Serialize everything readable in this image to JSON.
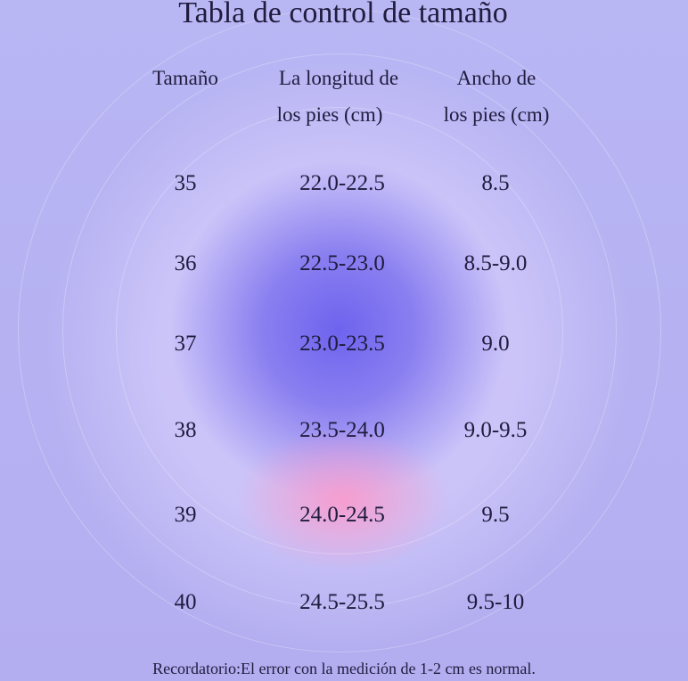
{
  "title": "Tabla de control de tamaño",
  "headers": [
    "Tamaño",
    "La longitud de\nlos pies (cm)",
    "Ancho de\nlos pies (cm)"
  ],
  "header_lines": {
    "size": [
      "Tamaño"
    ],
    "length": [
      "La longitud de",
      "los pies (cm)"
    ],
    "width": [
      "Ancho de",
      "los pies (cm)"
    ]
  },
  "rows": [
    {
      "size": "35",
      "length": "22.0-22.5",
      "width": "8.5"
    },
    {
      "size": "36",
      "length": "22.5-23.0",
      "width": "8.5-9.0"
    },
    {
      "size": "37",
      "length": "23.0-23.5",
      "width": "9.0"
    },
    {
      "size": "38",
      "length": "23.5-24.0",
      "width": "9.0-9.5"
    },
    {
      "size": "39",
      "length": "24.0-24.5",
      "width": "9.5"
    },
    {
      "size": "40",
      "length": "24.5-25.5",
      "width": "9.5-10"
    }
  ],
  "footer": "Recordatorio:El error con la medición de 1-2 cm es normal.",
  "colors": {
    "background": "#b6b2f2",
    "center_glow": "#6e63ee",
    "pink_glow": "#ff96c8",
    "text": "#1f1c3e"
  }
}
